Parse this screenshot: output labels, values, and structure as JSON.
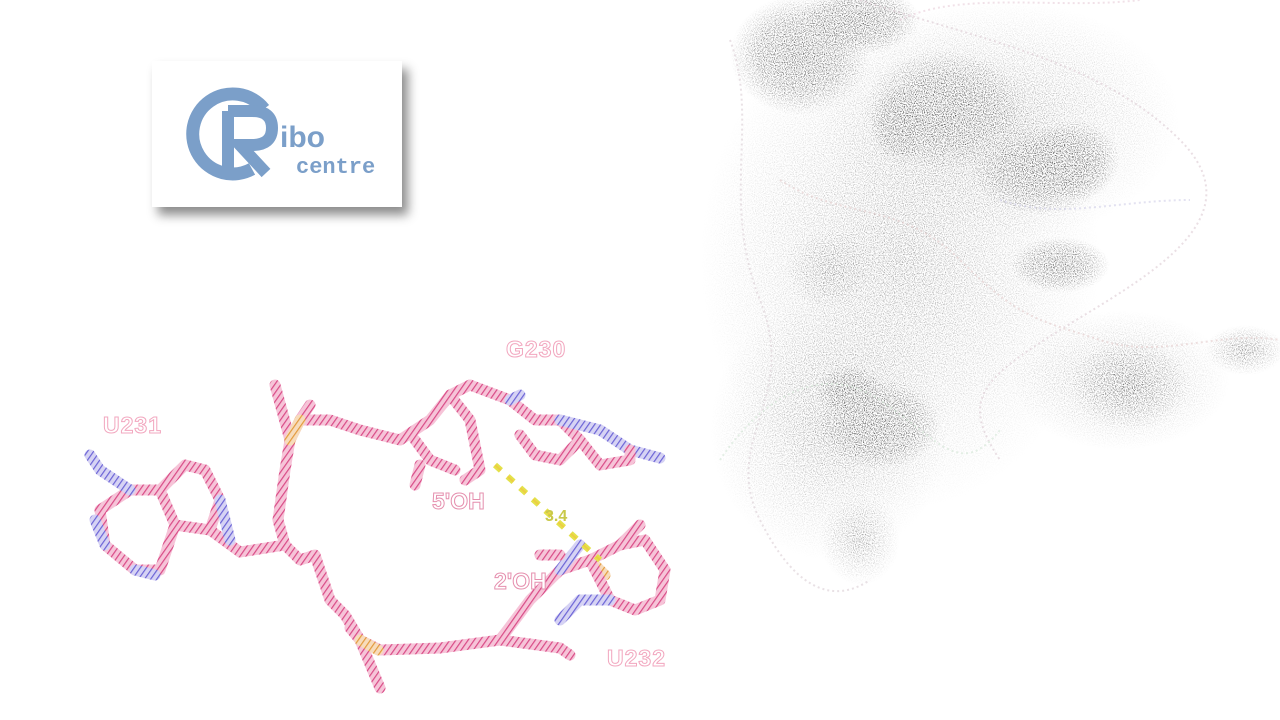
{
  "logo": {
    "letter": "R",
    "word_top": "ibo",
    "word_bottom": "centre",
    "color": "#7b9fc9"
  },
  "structure": {
    "residues": {
      "g230": "G230",
      "u231": "U231",
      "u232": "U232"
    },
    "atoms": {
      "o5": "5'OH",
      "o2": "2'OH"
    },
    "distance": "3.4"
  },
  "colors": {
    "backbone": "#e8609a",
    "base_blue": "#6b6fd6",
    "phosphate": "#e6a14a",
    "hbond": "#e0e04a",
    "rna_blue": "#4a7fc7",
    "rna_pink": "#d9326e",
    "rna_navy": "#2b2fa8",
    "rna_green": "#1f8a2f",
    "rna_red": "#c94a4a"
  }
}
